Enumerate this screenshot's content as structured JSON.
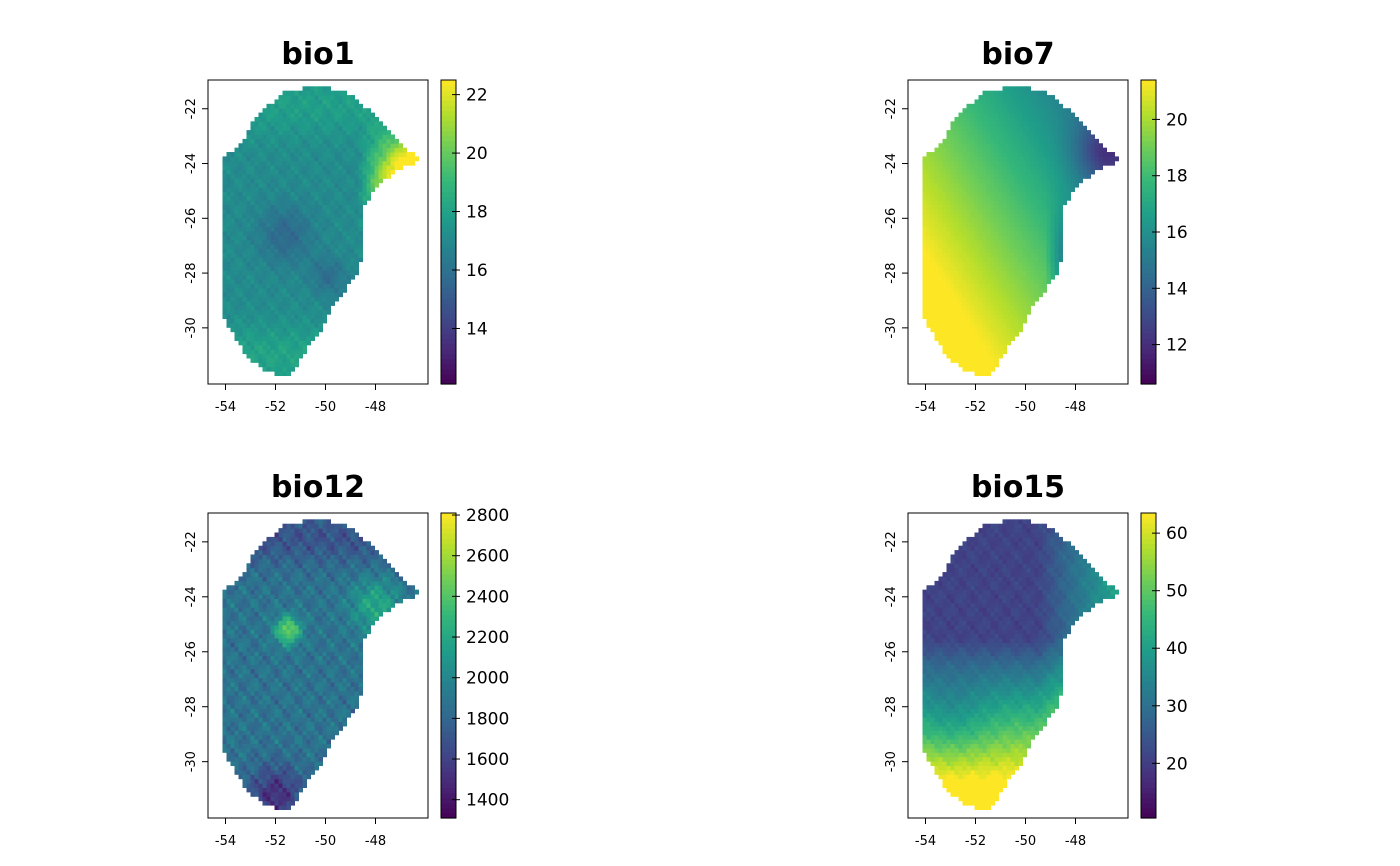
{
  "chart_data": [
    {
      "type": "heatmap",
      "title": "bio1",
      "xlabel": "",
      "ylabel": "",
      "x_ticks": [
        -54,
        -52,
        -50,
        -48
      ],
      "y_ticks": [
        -22,
        -24,
        -26,
        -28,
        -30
      ],
      "xlim": [
        -54.7,
        -45.9
      ],
      "ylim": [
        -32.05,
        -20.95
      ],
      "legend_ticks": [
        14,
        16,
        18,
        20,
        22
      ],
      "legend_range": [
        12.1,
        22.5
      ],
      "colormap": "viridis",
      "pattern": "bio1",
      "legend_position": "right"
    },
    {
      "type": "heatmap",
      "title": "bio7",
      "xlabel": "",
      "ylabel": "",
      "x_ticks": [
        -54,
        -52,
        -50,
        -48
      ],
      "y_ticks": [
        -22,
        -24,
        -26,
        -28,
        -30
      ],
      "xlim": [
        -54.7,
        -45.9
      ],
      "ylim": [
        -32.05,
        -20.95
      ],
      "legend_ticks": [
        12,
        14,
        16,
        18,
        20
      ],
      "legend_range": [
        10.6,
        21.4
      ],
      "colormap": "viridis",
      "pattern": "bio7",
      "legend_position": "right"
    },
    {
      "type": "heatmap",
      "title": "bio12",
      "xlabel": "",
      "ylabel": "",
      "x_ticks": [
        -54,
        -52,
        -50,
        -48
      ],
      "y_ticks": [
        -22,
        -24,
        -26,
        -28,
        -30
      ],
      "xlim": [
        -54.7,
        -45.9
      ],
      "ylim": [
        -32.05,
        -20.95
      ],
      "legend_ticks": [
        1400,
        1600,
        1800,
        2000,
        2200,
        2400,
        2600,
        2800
      ],
      "legend_range": [
        1310,
        2810
      ],
      "colormap": "viridis",
      "pattern": "bio12",
      "legend_position": "right"
    },
    {
      "type": "heatmap",
      "title": "bio15",
      "xlabel": "",
      "ylabel": "",
      "x_ticks": [
        -54,
        -52,
        -50,
        -48
      ],
      "y_ticks": [
        -22,
        -24,
        -26,
        -28,
        -30
      ],
      "xlim": [
        -54.7,
        -45.9
      ],
      "ylim": [
        -32.05,
        -20.95
      ],
      "legend_ticks": [
        20,
        30,
        40,
        50,
        60
      ],
      "legend_range": [
        10.5,
        63.5
      ],
      "colormap": "viridis",
      "pattern": "bio15",
      "legend_position": "right"
    }
  ]
}
